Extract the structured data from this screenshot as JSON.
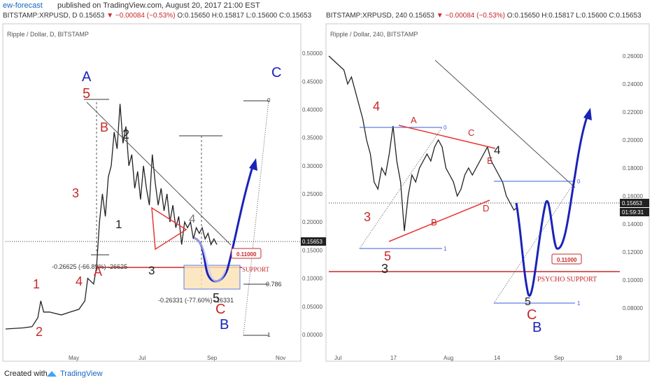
{
  "header": {
    "publisher": "ew-forecast",
    "published": "published on TradingView.com, August 20, 2017 21:00 EST"
  },
  "footer": {
    "created": "Created with",
    "brand": "TradingView"
  },
  "colors": {
    "up": "#c62828",
    "wave_blue": "#1a23b8",
    "wave_red": "#c62828",
    "ink": "#222222",
    "box": "#fbe3b5"
  },
  "chart_data": [
    {
      "type": "line",
      "legend": {
        "symbol": "BITSTAMP:XRPUSD, D",
        "last": "0.15653",
        "change": "−0.00084 (−0.53%)",
        "ohlc": "O:0.15650 H:0.15817 L:0.15600 C:0.15653"
      },
      "panel_title": "Ripple / Dollar, D, BITSTAMP",
      "x_tick_labels": [
        "May",
        "Jul",
        "Sep",
        "Nov"
      ],
      "y_tick_labels": [
        "0.50000",
        "0.45000",
        "0.40000",
        "0.35000",
        "0.30000",
        "0.25000",
        "0.20000",
        "0.15000",
        "0.10000",
        "0.05000",
        "0.00000"
      ],
      "ylim": [
        0,
        0.52
      ],
      "current_price_label": "0.15653",
      "price_path": [
        [
          0,
          0.01
        ],
        [
          12,
          0.012
        ],
        [
          18,
          0.014
        ],
        [
          22,
          0.03
        ],
        [
          24,
          0.06
        ],
        [
          26,
          0.04
        ],
        [
          30,
          0.04
        ],
        [
          38,
          0.035
        ],
        [
          44,
          0.04
        ],
        [
          50,
          0.045
        ],
        [
          54,
          0.06
        ],
        [
          56,
          0.1
        ],
        [
          60,
          0.09
        ],
        [
          62,
          0.12
        ],
        [
          64,
          0.2
        ],
        [
          66,
          0.25
        ],
        [
          68,
          0.21
        ],
        [
          70,
          0.28
        ],
        [
          72,
          0.3
        ],
        [
          74,
          0.36
        ],
        [
          76,
          0.33
        ],
        [
          78,
          0.41
        ],
        [
          80,
          0.34
        ],
        [
          82,
          0.37
        ],
        [
          84,
          0.3
        ],
        [
          86,
          0.32
        ],
        [
          88,
          0.26
        ],
        [
          90,
          0.29
        ],
        [
          92,
          0.24
        ],
        [
          94,
          0.3
        ],
        [
          96,
          0.26
        ],
        [
          98,
          0.23
        ],
        [
          100,
          0.32
        ],
        [
          102,
          0.27
        ],
        [
          104,
          0.23
        ],
        [
          106,
          0.26
        ],
        [
          108,
          0.22
        ],
        [
          110,
          0.25
        ],
        [
          112,
          0.2
        ],
        [
          114,
          0.23
        ],
        [
          116,
          0.19
        ],
        [
          118,
          0.21
        ],
        [
          120,
          0.16
        ],
        [
          122,
          0.2
        ],
        [
          124,
          0.19
        ],
        [
          126,
          0.2
        ],
        [
          128,
          0.17
        ],
        [
          130,
          0.19
        ],
        [
          132,
          0.18
        ],
        [
          134,
          0.19
        ],
        [
          136,
          0.17
        ],
        [
          138,
          0.18
        ],
        [
          140,
          0.16
        ],
        [
          142,
          0.17
        ],
        [
          144,
          0.16
        ]
      ],
      "labels": [
        "A",
        "5",
        "B",
        "2",
        "3",
        "1",
        "4",
        "1",
        "2",
        "3",
        "4",
        "A",
        "5",
        "C",
        "B",
        "C"
      ],
      "level_labels": [
        "0",
        "0.786",
        "1"
      ],
      "annotations": [
        "-0.26625 (-66.89%) -26625",
        "-0.26331 (-77.60%) -26331",
        "SUPPORT"
      ],
      "support_tag": "0.11000"
    },
    {
      "type": "line",
      "legend": {
        "symbol": "BITSTAMP:XRPUSD, 240",
        "last": "0.15653",
        "change": "−0.00084 (−0.53%)",
        "ohlc": "O:0.15650 H:0.15817 L:0.15600 C:0.15653"
      },
      "panel_title": "Ripple / Dollar, 240, BITSTAMP",
      "x_tick_labels": [
        "Jul",
        "17",
        "Aug",
        "14",
        "Sep",
        "18"
      ],
      "y_tick_labels": [
        "0.26000",
        "0.24000",
        "0.22000",
        "0.20000",
        "0.18000",
        "0.16000",
        "0.14000",
        "0.12000",
        "0.10000",
        "0.08000"
      ],
      "ylim": [
        0.07,
        0.27
      ],
      "current_price_label": "0.15653",
      "time_label": "01:59:31",
      "price_path": [
        [
          0,
          0.26
        ],
        [
          4,
          0.255
        ],
        [
          8,
          0.25
        ],
        [
          10,
          0.24
        ],
        [
          12,
          0.245
        ],
        [
          14,
          0.235
        ],
        [
          16,
          0.225
        ],
        [
          18,
          0.215
        ],
        [
          20,
          0.2
        ],
        [
          22,
          0.19
        ],
        [
          24,
          0.17
        ],
        [
          26,
          0.165
        ],
        [
          28,
          0.18
        ],
        [
          30,
          0.175
        ],
        [
          32,
          0.19
        ],
        [
          34,
          0.21
        ],
        [
          36,
          0.185
        ],
        [
          38,
          0.17
        ],
        [
          40,
          0.135
        ],
        [
          42,
          0.16
        ],
        [
          44,
          0.175
        ],
        [
          46,
          0.17
        ],
        [
          48,
          0.18
        ],
        [
          50,
          0.185
        ],
        [
          52,
          0.19
        ],
        [
          54,
          0.185
        ],
        [
          56,
          0.195
        ],
        [
          58,
          0.2
        ],
        [
          60,
          0.195
        ],
        [
          62,
          0.18
        ],
        [
          64,
          0.175
        ],
        [
          66,
          0.17
        ],
        [
          68,
          0.16
        ],
        [
          70,
          0.165
        ],
        [
          72,
          0.175
        ],
        [
          74,
          0.18
        ],
        [
          76,
          0.175
        ],
        [
          78,
          0.18
        ],
        [
          80,
          0.185
        ],
        [
          82,
          0.19
        ],
        [
          84,
          0.195
        ],
        [
          86,
          0.185
        ],
        [
          88,
          0.18
        ],
        [
          90,
          0.175
        ],
        [
          92,
          0.17
        ],
        [
          94,
          0.16
        ],
        [
          96,
          0.155
        ],
        [
          98,
          0.15
        ],
        [
          100,
          0.152
        ]
      ],
      "labels": [
        "4",
        "A",
        "C",
        "4",
        "E",
        "3",
        "B",
        "D",
        "5",
        "3",
        "C",
        "B"
      ],
      "level_labels": [
        "0",
        "1",
        "0",
        "1"
      ],
      "annotations": [
        "PSYCHO SUPPORT"
      ],
      "support_tag": "0.11000"
    }
  ]
}
